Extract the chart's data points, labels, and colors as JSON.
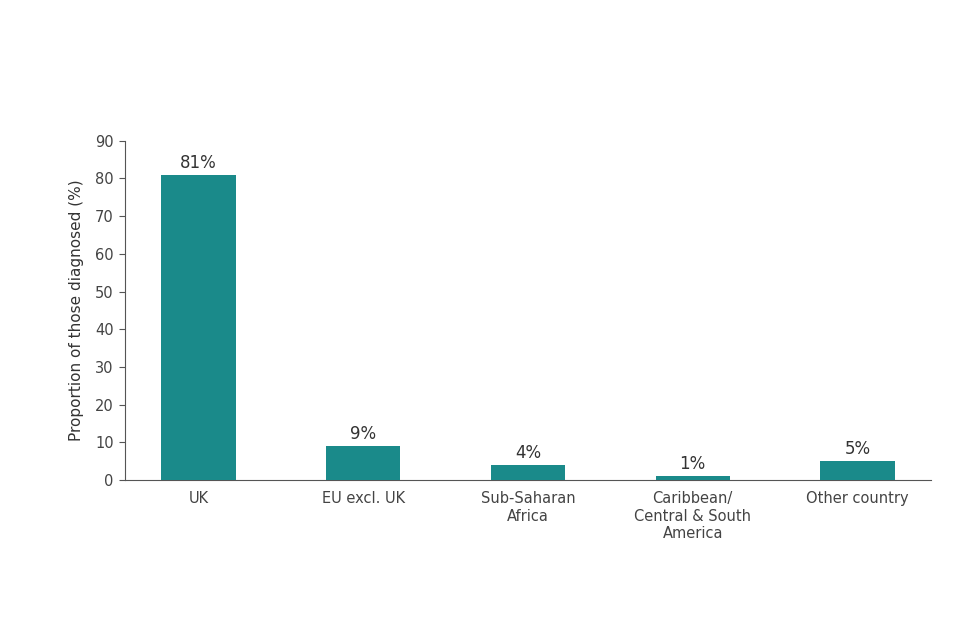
{
  "categories": [
    "UK",
    "EU excl. UK",
    "Sub-Saharan\nAfrica",
    "Caribbean/\nCentral & South\nAmerica",
    "Other country"
  ],
  "values": [
    81,
    9,
    4,
    1,
    5
  ],
  "labels": [
    "81%",
    "9%",
    "4%",
    "1%",
    "5%"
  ],
  "bar_color": "#1a8a8a",
  "ylabel": "Proportion of those diagnosed (%)",
  "ylim": [
    0,
    90
  ],
  "yticks": [
    0,
    10,
    20,
    30,
    40,
    50,
    60,
    70,
    80,
    90
  ],
  "background_color": "#ffffff",
  "label_fontsize": 12,
  "ylabel_fontsize": 11,
  "tick_fontsize": 10.5,
  "bar_width": 0.45
}
